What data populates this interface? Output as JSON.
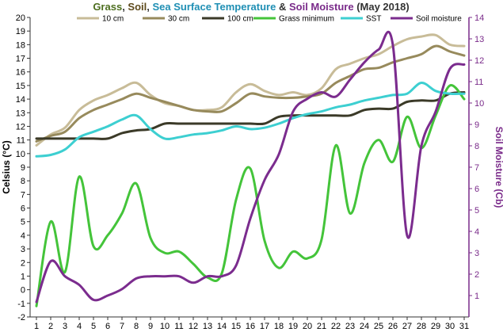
{
  "chart_data": {
    "type": "line",
    "title": {
      "parts": [
        {
          "text": "Grass",
          "color": "#4d6e1f"
        },
        {
          "text": ", ",
          "color": "#333333"
        },
        {
          "text": "Soil",
          "color": "#5e4a1c"
        },
        {
          "text": ", ",
          "color": "#333333"
        },
        {
          "text": "Sea Surface Temperature",
          "color": "#1f8fb4"
        },
        {
          "text": " & ",
          "color": "#333333"
        },
        {
          "text": "Soil Moisture",
          "color": "#7a2b8a"
        },
        {
          "text": " (May 2018)",
          "color": "#333333"
        }
      ]
    },
    "ylabel": "Celsius (°C)",
    "y2label": "Soil Moisture (Cb)",
    "x": [
      1,
      2,
      3,
      4,
      5,
      6,
      7,
      8,
      9,
      10,
      11,
      12,
      13,
      14,
      15,
      16,
      17,
      18,
      19,
      20,
      21,
      22,
      23,
      24,
      25,
      26,
      27,
      28,
      29,
      30,
      31
    ],
    "ylim": [
      -2,
      20
    ],
    "y2lim": [
      0,
      14
    ],
    "yticks": [
      -2,
      -1,
      0,
      1,
      2,
      3,
      4,
      5,
      6,
      7,
      8,
      9,
      10,
      11,
      12,
      13,
      14,
      15,
      16,
      17,
      18,
      19,
      20
    ],
    "y2ticks": [
      1,
      2,
      3,
      4,
      5,
      6,
      7,
      8,
      9,
      10,
      11,
      12,
      13,
      14
    ],
    "grid": false,
    "legend_position": "top",
    "series": [
      {
        "name": "10 cm",
        "color": "#c8bc98",
        "axis": "left",
        "values": [
          10.6,
          11.4,
          11.9,
          13.2,
          13.9,
          14.3,
          14.8,
          15.2,
          14.3,
          13.7,
          13.5,
          13.2,
          13.2,
          13.4,
          14.5,
          15.1,
          14.6,
          14.3,
          14.5,
          14.3,
          14.8,
          16.2,
          16.6,
          17.0,
          17.3,
          17.9,
          18.4,
          18.6,
          18.7,
          18.0,
          17.9
        ]
      },
      {
        "name": "30 cm",
        "color": "#978a5c",
        "axis": "left",
        "values": [
          10.9,
          11.3,
          11.6,
          12.6,
          13.2,
          13.6,
          14.0,
          14.4,
          14.1,
          13.8,
          13.5,
          13.2,
          13.1,
          13.1,
          13.7,
          14.4,
          14.2,
          14.1,
          14.1,
          14.2,
          14.4,
          15.2,
          15.7,
          16.2,
          16.3,
          16.7,
          17.0,
          17.3,
          17.9,
          17.5,
          17.2
        ]
      },
      {
        "name": "100 cm",
        "color": "#3b3a28",
        "axis": "left",
        "values": [
          11.1,
          11.1,
          11.1,
          11.1,
          11.1,
          11.1,
          11.5,
          11.7,
          11.8,
          12.2,
          12.2,
          12.2,
          12.2,
          12.2,
          12.2,
          12.2,
          12.2,
          12.7,
          12.8,
          12.8,
          12.8,
          12.8,
          12.8,
          13.2,
          13.3,
          13.3,
          13.8,
          13.9,
          13.9,
          14.4,
          14.5
        ]
      },
      {
        "name": "Grass minimum",
        "color": "#44c43a",
        "axis": "left",
        "values": [
          -1.2,
          5.0,
          1.3,
          8.3,
          3.2,
          4.0,
          5.6,
          7.8,
          3.8,
          2.7,
          2.8,
          1.9,
          0.9,
          1.2,
          6.6,
          8.9,
          3.6,
          1.6,
          2.8,
          2.3,
          3.7,
          10.6,
          5.6,
          9.3,
          11.0,
          9.4,
          12.7,
          10.4,
          12.8,
          15.0,
          14.0
        ]
      },
      {
        "name": "SST",
        "color": "#3dcfd1",
        "axis": "left",
        "values": [
          9.8,
          9.9,
          10.3,
          11.2,
          11.6,
          12.0,
          12.5,
          12.8,
          11.8,
          11.1,
          11.2,
          11.4,
          11.5,
          11.7,
          12.0,
          11.8,
          11.9,
          12.2,
          12.6,
          12.9,
          13.1,
          13.4,
          13.6,
          13.9,
          14.1,
          14.3,
          14.4,
          15.2,
          14.6,
          14.4,
          14.4
        ]
      },
      {
        "name": "Soil moisture",
        "color": "#7b2c8e",
        "axis": "right",
        "values": [
          0.7,
          2.6,
          1.9,
          1.5,
          0.8,
          1.0,
          1.3,
          1.8,
          1.9,
          1.9,
          1.9,
          1.6,
          1.9,
          1.9,
          2.4,
          4.6,
          6.4,
          7.6,
          9.6,
          10.2,
          10.5,
          10.3,
          11.1,
          11.9,
          12.5,
          12.7,
          3.8,
          8.0,
          9.6,
          11.6,
          11.8
        ]
      }
    ]
  }
}
